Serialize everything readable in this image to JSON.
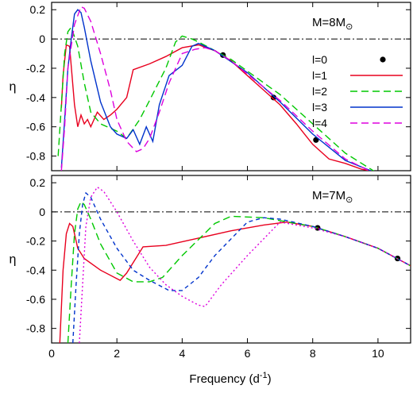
{
  "chart_data": [
    {
      "type": "line",
      "panel_label": "M=8M",
      "panel_label_symbol": "⊙",
      "ylabel": "η",
      "xlim": [
        0,
        11
      ],
      "ylim": [
        -0.9,
        0.25
      ],
      "yticks": [
        "0.2",
        "0",
        "-0.2",
        "-0.4",
        "-0.6",
        "-0.8"
      ],
      "ytick_values": [
        0.2,
        0,
        -0.2,
        -0.4,
        -0.6,
        -0.8
      ],
      "reference_line": 0,
      "legend_position": "top-right",
      "series": [
        {
          "name": "l=0",
          "style": "dots",
          "color": "#000000",
          "x": [
            5.25,
            6.8,
            8.1
          ],
          "y": [
            -0.11,
            -0.4,
            -0.69
          ]
        },
        {
          "name": "l=1",
          "style": "solid",
          "color": "#e8001e",
          "x": [
            0.3,
            0.35,
            0.45,
            0.55,
            0.7,
            0.8,
            0.9,
            1.0,
            1.1,
            1.2,
            1.4,
            1.6,
            1.8,
            2.0,
            2.3,
            2.5,
            3.0,
            3.5,
            4.0,
            4.5,
            5.0,
            5.5,
            6.0,
            6.5,
            7.0,
            7.5,
            8.0,
            8.5,
            9.0,
            9.5,
            10.0
          ],
          "y": [
            -0.47,
            -0.25,
            -0.04,
            -0.05,
            -0.45,
            -0.6,
            -0.52,
            -0.58,
            -0.55,
            -0.6,
            -0.5,
            -0.55,
            -0.52,
            -0.48,
            -0.4,
            -0.21,
            -0.17,
            -0.12,
            -0.06,
            -0.04,
            -0.08,
            -0.15,
            -0.25,
            -0.35,
            -0.45,
            -0.58,
            -0.72,
            -0.82,
            -0.85,
            -0.89,
            -0.91
          ]
        },
        {
          "name": "l=2",
          "style": "dashed",
          "color": "#00c800",
          "x": [
            0.2,
            0.3,
            0.4,
            0.5,
            0.6,
            0.8,
            1.0,
            1.2,
            1.5,
            2.0,
            2.3,
            2.7,
            3.0,
            3.5,
            3.8,
            4.0,
            4.3,
            4.5,
            5.0,
            5.5,
            6.0,
            7.0,
            8.0,
            9.0,
            10.0
          ],
          "y": [
            -0.8,
            -0.45,
            -0.1,
            0.05,
            0.08,
            -0.05,
            -0.3,
            -0.5,
            -0.58,
            -0.63,
            -0.68,
            -0.55,
            -0.42,
            -0.2,
            -0.02,
            0.02,
            0.0,
            -0.02,
            -0.08,
            -0.14,
            -0.22,
            -0.38,
            -0.58,
            -0.78,
            -0.92
          ]
        },
        {
          "name": "l=3",
          "style": "solid",
          "color": "#0033cc",
          "x": [
            0.3,
            0.4,
            0.5,
            0.6,
            0.7,
            0.8,
            0.9,
            1.0,
            1.2,
            1.5,
            1.8,
            2.0,
            2.3,
            2.5,
            2.7,
            2.9,
            3.1,
            3.3,
            3.6,
            4.0,
            4.3,
            4.5,
            5.0,
            6.0,
            7.0,
            8.0,
            9.0,
            10.0
          ],
          "y": [
            -0.88,
            -0.55,
            -0.2,
            0.0,
            0.17,
            0.2,
            0.18,
            0.08,
            -0.15,
            -0.43,
            -0.6,
            -0.65,
            -0.68,
            -0.62,
            -0.72,
            -0.6,
            -0.7,
            -0.45,
            -0.25,
            -0.18,
            -0.05,
            -0.03,
            -0.08,
            -0.23,
            -0.43,
            -0.65,
            -0.83,
            -0.92
          ]
        },
        {
          "name": "l=4",
          "style": "dashed",
          "color": "#dd00dd",
          "x": [
            0.3,
            0.4,
            0.5,
            0.7,
            0.9,
            1.0,
            1.2,
            1.5,
            1.8,
            2.0,
            2.3,
            2.6,
            2.8,
            3.0,
            3.3,
            3.6,
            4.0,
            4.4,
            4.7,
            5.0,
            5.5,
            6.0,
            7.0,
            8.0,
            9.0,
            10.0
          ],
          "y": [
            -0.9,
            -0.6,
            -0.2,
            0.1,
            0.22,
            0.21,
            0.12,
            -0.1,
            -0.35,
            -0.55,
            -0.7,
            -0.77,
            -0.75,
            -0.68,
            -0.5,
            -0.3,
            -0.1,
            -0.07,
            -0.06,
            -0.08,
            -0.15,
            -0.24,
            -0.42,
            -0.63,
            -0.82,
            -0.93
          ]
        }
      ]
    },
    {
      "type": "line",
      "panel_label": "M=7M",
      "panel_label_symbol": "⊙",
      "ylabel": "η",
      "xlabel": "Frequency (d",
      "xlabel_sup": "-1",
      "xlabel_end": ")",
      "xlim": [
        0,
        11
      ],
      "ylim": [
        -0.9,
        0.25
      ],
      "xticks": [
        "0",
        "2",
        "4",
        "6",
        "8",
        "10"
      ],
      "xtick_values": [
        0,
        2,
        4,
        6,
        8,
        10
      ],
      "yticks": [
        "0.2",
        "0",
        "-0.2",
        "-0.4",
        "-0.6",
        "-0.8"
      ],
      "ytick_values": [
        0.2,
        0,
        -0.2,
        -0.4,
        -0.6,
        -0.8
      ],
      "reference_line": 0,
      "series": [
        {
          "name": "l=0",
          "style": "dots",
          "color": "#000000",
          "x": [
            8.15,
            10.6
          ],
          "y": [
            -0.11,
            -0.32
          ]
        },
        {
          "name": "l=1",
          "style": "solid",
          "color": "#e8001e",
          "x": [
            0.25,
            0.35,
            0.45,
            0.55,
            0.65,
            0.8,
            1.0,
            1.5,
            2.1,
            2.3,
            2.8,
            3.5,
            4.5,
            5.5,
            6.5,
            7.2,
            8.0,
            9.0,
            10.0,
            11.0
          ],
          "y": [
            -0.9,
            -0.4,
            -0.15,
            -0.08,
            -0.1,
            -0.25,
            -0.32,
            -0.4,
            -0.47,
            -0.42,
            -0.24,
            -0.23,
            -0.18,
            -0.13,
            -0.09,
            -0.07,
            -0.1,
            -0.17,
            -0.25,
            -0.37
          ]
        },
        {
          "name": "l=2",
          "style": "dashed",
          "color": "#00c800",
          "x": [
            0.5,
            0.6,
            0.7,
            0.8,
            0.9,
            1.0,
            1.2,
            1.5,
            2.0,
            2.5,
            3.0,
            3.4,
            4.0,
            5.0,
            5.5,
            6.5,
            7.0,
            8.0,
            9.0,
            10.0,
            11.0
          ],
          "y": [
            -0.9,
            -0.5,
            -0.15,
            0.02,
            0.07,
            0.05,
            -0.05,
            -0.22,
            -0.42,
            -0.48,
            -0.48,
            -0.45,
            -0.3,
            -0.08,
            -0.03,
            -0.04,
            -0.06,
            -0.1,
            -0.17,
            -0.25,
            -0.37
          ]
        },
        {
          "name": "l=3",
          "style": "dashed-short",
          "color": "#0033cc",
          "x": [
            0.65,
            0.75,
            0.85,
            0.95,
            1.05,
            1.2,
            1.5,
            2.0,
            2.5,
            3.0,
            3.6,
            4.0,
            4.5,
            5.0,
            6.0,
            6.5,
            7.0,
            8.0,
            9.0,
            10.0,
            11.0
          ],
          "y": [
            -0.9,
            -0.5,
            -0.15,
            0.05,
            0.13,
            0.1,
            -0.05,
            -0.25,
            -0.4,
            -0.47,
            -0.54,
            -0.54,
            -0.45,
            -0.3,
            -0.07,
            -0.04,
            -0.05,
            -0.1,
            -0.17,
            -0.25,
            -0.37
          ]
        },
        {
          "name": "l=4",
          "style": "dotted",
          "color": "#dd00dd",
          "x": [
            0.85,
            0.95,
            1.05,
            1.2,
            1.4,
            1.6,
            2.0,
            2.5,
            3.0,
            3.5,
            4.0,
            4.5,
            4.7,
            5.2,
            6.0,
            7.0,
            8.0,
            9.0,
            10.0,
            11.0
          ],
          "y": [
            -0.9,
            -0.5,
            -0.1,
            0.1,
            0.17,
            0.14,
            0.0,
            -0.2,
            -0.38,
            -0.5,
            -0.58,
            -0.64,
            -0.65,
            -0.5,
            -0.3,
            -0.07,
            -0.11,
            -0.17,
            -0.25,
            -0.37
          ]
        }
      ]
    }
  ]
}
